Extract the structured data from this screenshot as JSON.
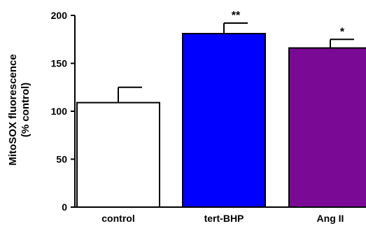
{
  "chart_data": {
    "type": "bar",
    "categories": [
      "control",
      "tert-BHP",
      "Ang II"
    ],
    "values": [
      109,
      181,
      166
    ],
    "error": [
      16,
      11,
      9
    ],
    "significance": [
      "",
      "**",
      "*"
    ],
    "colors": [
      "#ffffff",
      "#0000ff",
      "#7a0a96"
    ],
    "ylabel_lines": [
      "MitoSOX fluorescence",
      "(% control)"
    ],
    "yticks": [
      0,
      50,
      100,
      150,
      200
    ],
    "ylim": [
      0,
      200
    ],
    "title": "",
    "xlabel": "",
    "grid": false,
    "legend": "none"
  }
}
